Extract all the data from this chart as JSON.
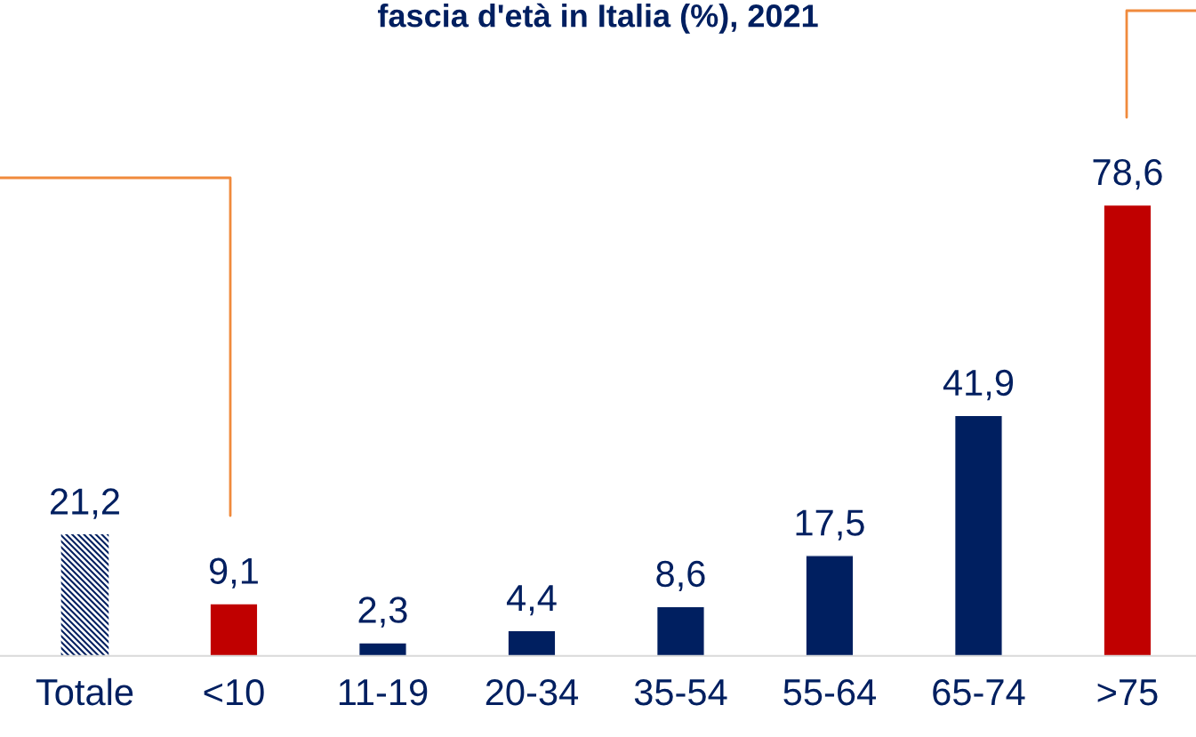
{
  "chart_data": {
    "type": "bar",
    "title": "fascia d'età in Italia (%), 2021",
    "categories": [
      "Totale",
      "<10",
      "11-19",
      "20-34",
      "35-54",
      "55-64",
      "65-74",
      ">75"
    ],
    "values": [
      21.2,
      9.1,
      2.3,
      4.4,
      8.6,
      17.5,
      41.9,
      78.6
    ],
    "colors": [
      "#001f60",
      "#c00000",
      "#001f60",
      "#001f60",
      "#001f60",
      "#001f60",
      "#001f60",
      "#c00000"
    ],
    "value_labels": [
      "21,2",
      "9,1",
      "2,3",
      "4,4",
      "8,6",
      "17,5",
      "41,9",
      "78,6"
    ]
  }
}
